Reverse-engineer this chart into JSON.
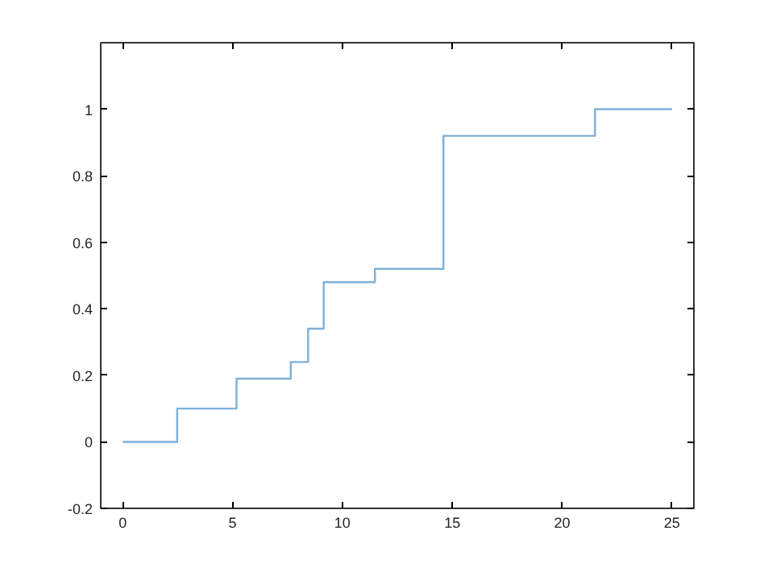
{
  "chart_data": {
    "type": "step",
    "x": [
      0,
      2.48,
      5.18,
      7.65,
      8.44,
      9.15,
      11.48,
      14.6,
      21.5,
      25
    ],
    "series": [
      {
        "color": "#7eb0da",
        "values": [
          0,
          0.1,
          0.19,
          0.24,
          0.34,
          0.48,
          0.52,
          0.92,
          1,
          1
        ]
      }
    ],
    "xlim": [
      -1,
      26
    ],
    "ylim": [
      -0.2,
      1.2
    ],
    "xticks": [
      0,
      5,
      10,
      15,
      20,
      25
    ],
    "yticks": [
      -0.2,
      0,
      0.2,
      0.4,
      0.6,
      0.8,
      1
    ],
    "grid": false
  }
}
